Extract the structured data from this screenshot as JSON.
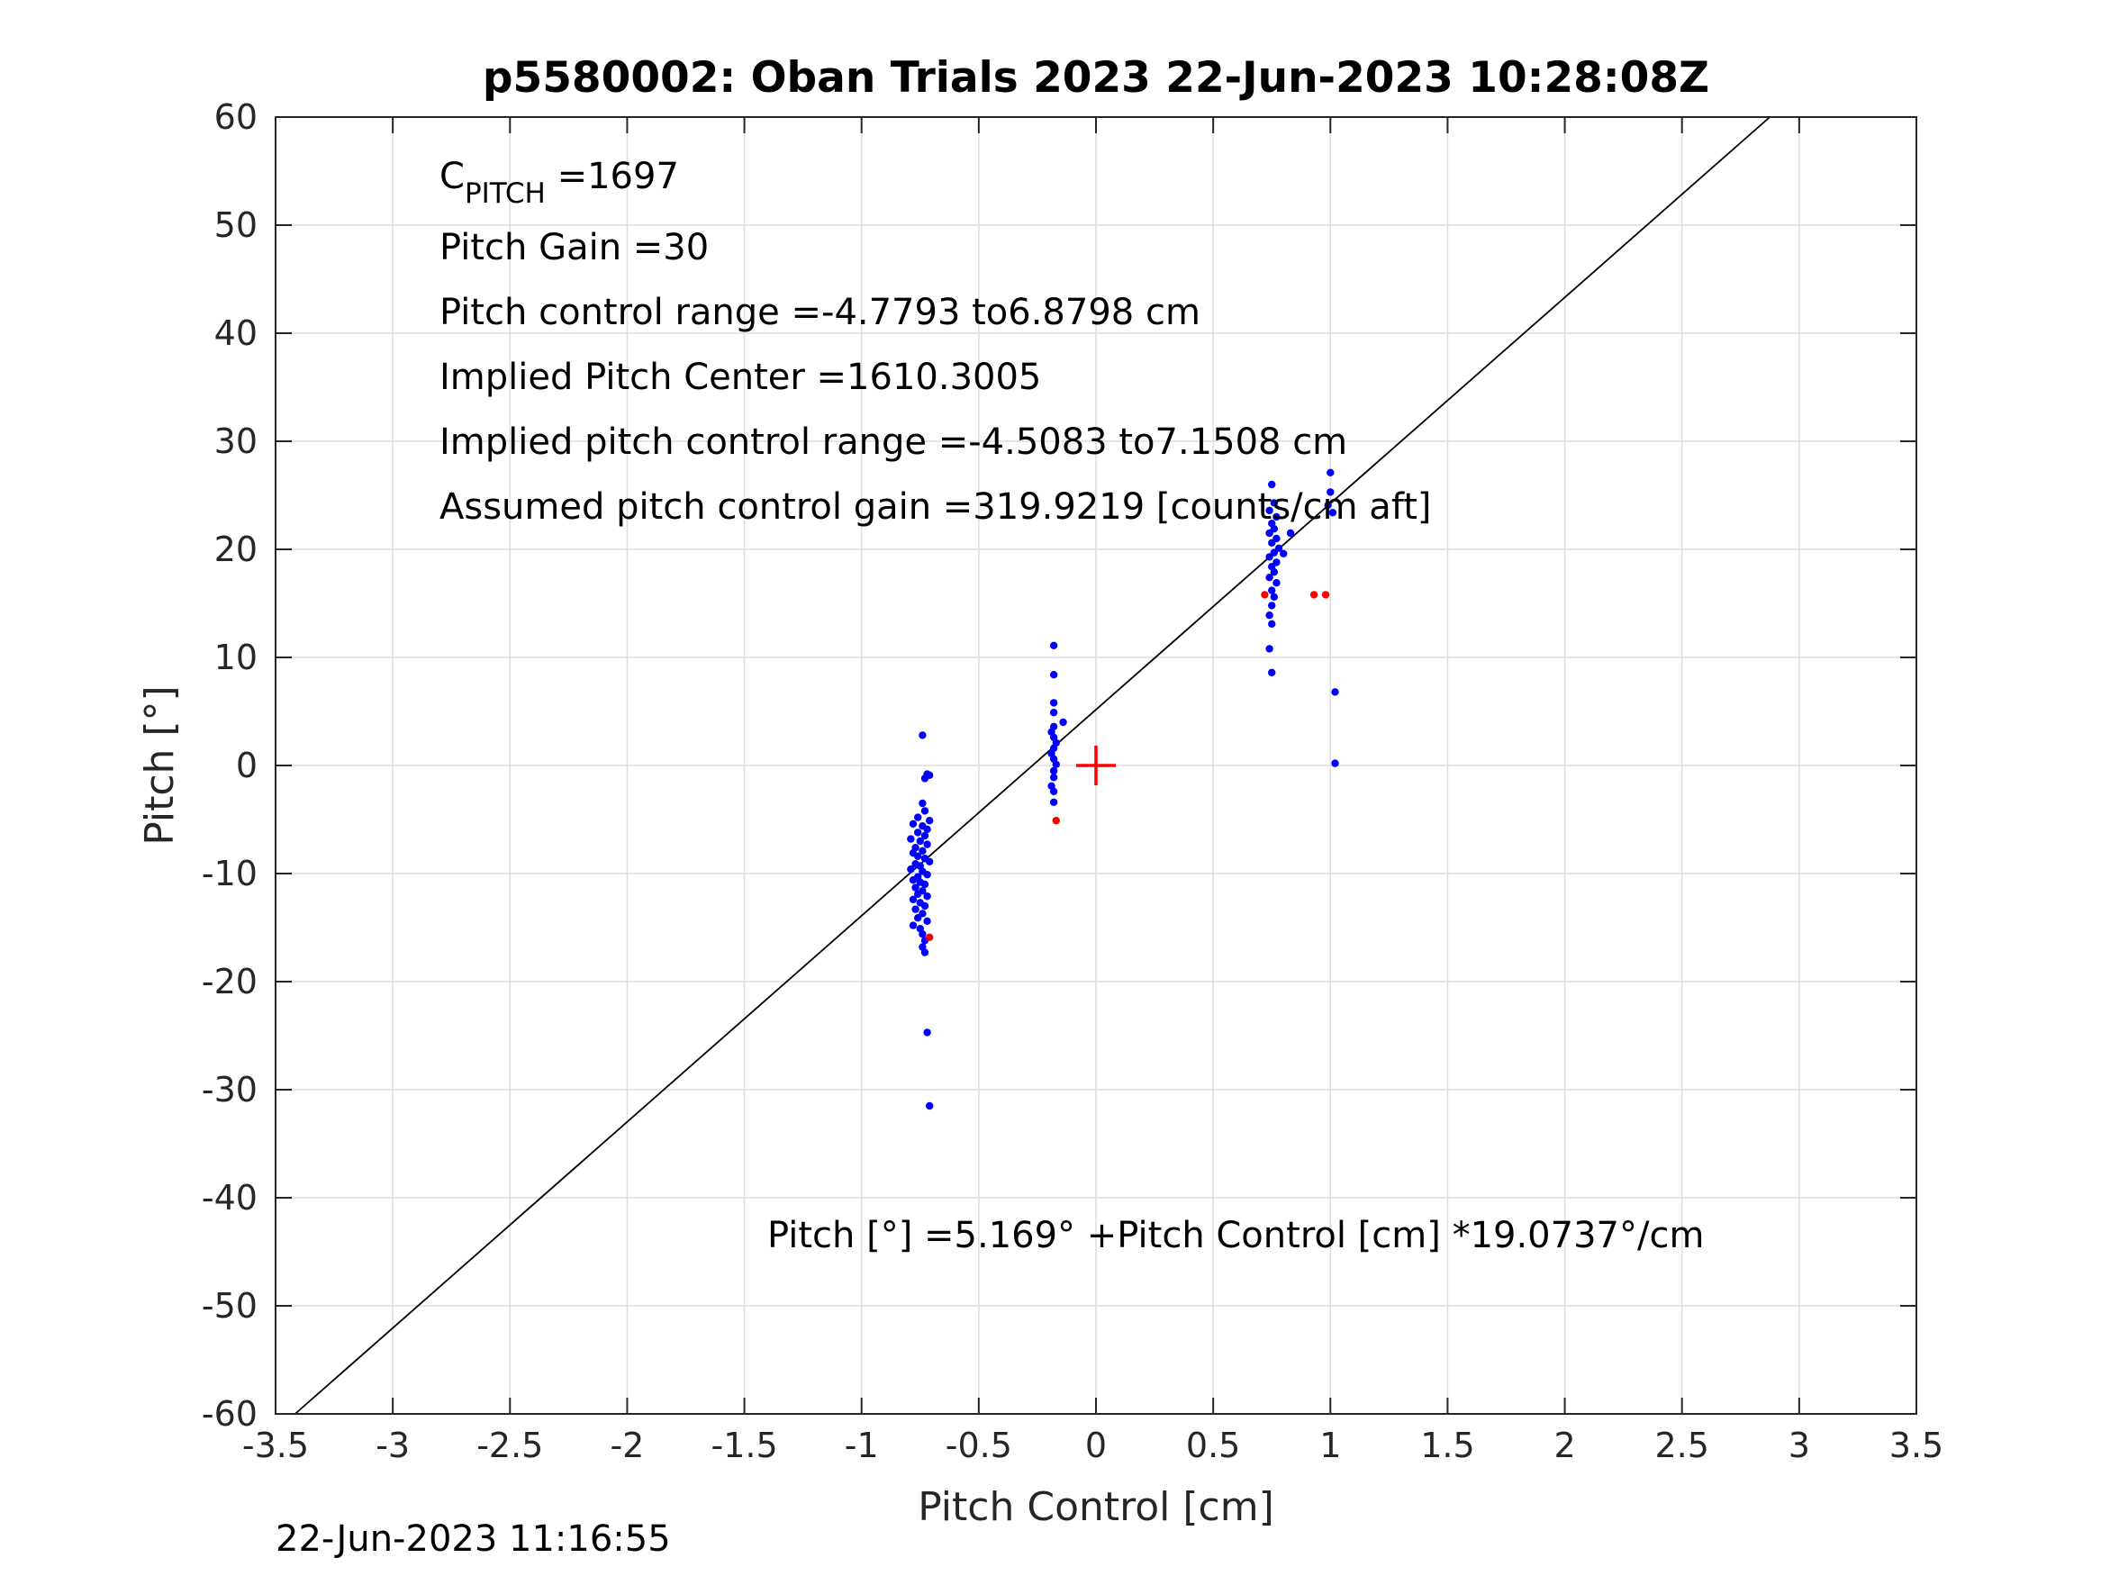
{
  "chart_data": {
    "type": "scatter",
    "title": "p5580002: Oban Trials 2023 22-Jun-2023 10:28:08Z",
    "xlabel": "Pitch Control [cm]",
    "ylabel": "Pitch [°]",
    "xlim": [
      -3.5,
      3.5
    ],
    "ylim": [
      -60,
      60
    ],
    "xticks": [
      -3.5,
      -3,
      -2.5,
      -2,
      -1.5,
      -1,
      -0.5,
      0,
      0.5,
      1,
      1.5,
      2,
      2.5,
      3,
      3.5
    ],
    "xtick_labels": [
      "-3.5",
      "-3",
      "-2.5",
      "-2",
      "-1.5",
      "-1",
      "-0.5",
      "0",
      "0.5",
      "1",
      "1.5",
      "2",
      "2.5",
      "3",
      "3.5"
    ],
    "yticks": [
      -60,
      -50,
      -40,
      -30,
      -20,
      -10,
      0,
      10,
      20,
      30,
      40,
      50,
      60
    ],
    "ytick_labels": [
      "-60",
      "-50",
      "-40",
      "-30",
      "-20",
      "-10",
      "0",
      "10",
      "20",
      "30",
      "40",
      "50",
      "60"
    ],
    "grid": true,
    "fit_line": {
      "intercept": 5.169,
      "slope": 19.0737,
      "color": "#000000"
    },
    "center_marker": {
      "x": 0,
      "y": 0,
      "color": "#ff0000",
      "shape": "plus"
    },
    "series": [
      {
        "color": "#0000ff",
        "points": [
          [
            -0.74,
            2.8
          ],
          [
            -0.72,
            -0.8
          ],
          [
            -0.73,
            -1.2
          ],
          [
            -0.71,
            -0.9
          ],
          [
            -0.74,
            -3.5
          ],
          [
            -0.73,
            -4.2
          ],
          [
            -0.76,
            -4.8
          ],
          [
            -0.71,
            -5.1
          ],
          [
            -0.78,
            -5.4
          ],
          [
            -0.74,
            -5.6
          ],
          [
            -0.72,
            -5.9
          ],
          [
            -0.76,
            -6.2
          ],
          [
            -0.73,
            -6.5
          ],
          [
            -0.79,
            -6.8
          ],
          [
            -0.75,
            -7.0
          ],
          [
            -0.72,
            -7.3
          ],
          [
            -0.77,
            -7.6
          ],
          [
            -0.74,
            -7.9
          ],
          [
            -0.78,
            -8.1
          ],
          [
            -0.76,
            -8.4
          ],
          [
            -0.73,
            -8.6
          ],
          [
            -0.71,
            -8.9
          ],
          [
            -0.77,
            -9.1
          ],
          [
            -0.75,
            -9.3
          ],
          [
            -0.79,
            -9.6
          ],
          [
            -0.74,
            -9.8
          ],
          [
            -0.72,
            -10.1
          ],
          [
            -0.76,
            -10.3
          ],
          [
            -0.78,
            -10.6
          ],
          [
            -0.75,
            -10.8
          ],
          [
            -0.73,
            -11.0
          ],
          [
            -0.77,
            -11.3
          ],
          [
            -0.74,
            -11.6
          ],
          [
            -0.76,
            -11.9
          ],
          [
            -0.72,
            -12.1
          ],
          [
            -0.78,
            -12.4
          ],
          [
            -0.75,
            -12.7
          ],
          [
            -0.73,
            -13.0
          ],
          [
            -0.77,
            -13.3
          ],
          [
            -0.74,
            -13.7
          ],
          [
            -0.76,
            -14.1
          ],
          [
            -0.72,
            -14.4
          ],
          [
            -0.78,
            -14.8
          ],
          [
            -0.75,
            -15.1
          ],
          [
            -0.74,
            -15.6
          ],
          [
            -0.73,
            -16.2
          ],
          [
            -0.74,
            -16.8
          ],
          [
            -0.73,
            -17.3
          ],
          [
            -0.72,
            -24.7
          ],
          [
            -0.71,
            -31.5
          ],
          [
            -0.18,
            11.1
          ],
          [
            -0.18,
            8.4
          ],
          [
            -0.18,
            5.8
          ],
          [
            -0.18,
            4.9
          ],
          [
            -0.14,
            4.0
          ],
          [
            -0.18,
            3.6
          ],
          [
            -0.19,
            3.1
          ],
          [
            -0.18,
            2.6
          ],
          [
            -0.17,
            2.1
          ],
          [
            -0.18,
            1.6
          ],
          [
            -0.19,
            1.1
          ],
          [
            -0.18,
            0.6
          ],
          [
            -0.17,
            0.1
          ],
          [
            -0.18,
            -0.5
          ],
          [
            -0.18,
            -1.1
          ],
          [
            -0.19,
            -1.9
          ],
          [
            -0.18,
            -2.4
          ],
          [
            -0.18,
            -3.4
          ],
          [
            0.75,
            26.0
          ],
          [
            0.76,
            24.3
          ],
          [
            0.74,
            23.6
          ],
          [
            0.77,
            23.0
          ],
          [
            0.75,
            22.4
          ],
          [
            0.76,
            21.9
          ],
          [
            0.74,
            21.5
          ],
          [
            0.77,
            21.0
          ],
          [
            0.75,
            20.6
          ],
          [
            0.78,
            20.1
          ],
          [
            0.76,
            19.7
          ],
          [
            0.74,
            19.3
          ],
          [
            0.77,
            18.8
          ],
          [
            0.75,
            18.4
          ],
          [
            0.76,
            17.9
          ],
          [
            0.74,
            17.4
          ],
          [
            0.77,
            16.9
          ],
          [
            0.75,
            16.2
          ],
          [
            0.76,
            15.6
          ],
          [
            0.75,
            14.8
          ],
          [
            0.74,
            13.9
          ],
          [
            0.75,
            13.1
          ],
          [
            0.74,
            10.8
          ],
          [
            0.75,
            8.6
          ],
          [
            0.83,
            21.5
          ],
          [
            0.8,
            19.6
          ],
          [
            1.0,
            27.1
          ],
          [
            1.0,
            25.3
          ],
          [
            0.99,
            24.1
          ],
          [
            1.01,
            23.4
          ],
          [
            1.02,
            6.8
          ],
          [
            1.02,
            0.2
          ]
        ]
      },
      {
        "color": "#ff0000",
        "points": [
          [
            -0.71,
            -15.9
          ],
          [
            -0.17,
            -5.1
          ],
          [
            0.72,
            15.8
          ],
          [
            0.93,
            15.8
          ],
          [
            0.98,
            15.8
          ]
        ]
      }
    ],
    "annotations": [
      {
        "prefix": "C",
        "sub": "PITCH",
        "suffix": " =1697"
      },
      {
        "text": "Pitch Gain =30"
      },
      {
        "text": "Pitch control range =-4.7793 to6.8798 cm"
      },
      {
        "text": "Implied Pitch Center =1610.3005"
      },
      {
        "text": "Implied pitch control range =-4.5083 to7.1508 cm"
      },
      {
        "text": "Assumed pitch control gain =319.9219 [counts/cm aft]"
      },
      {
        "text": "Pitch [°] =5.169° +Pitch Control [cm] *19.0737°/cm"
      }
    ]
  },
  "footer": {
    "timestamp": "22-Jun-2023 11:16:55"
  }
}
